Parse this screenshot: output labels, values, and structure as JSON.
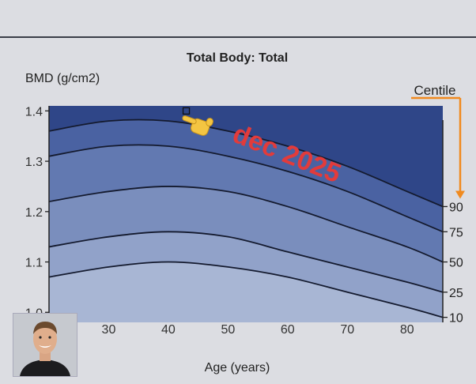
{
  "chart_data": {
    "type": "area",
    "title": "Total Body: Total",
    "ylabel": "BMD (g/cm2)",
    "xlabel": "Age (years)",
    "centile_label": "Centile",
    "annotation": "dec 2025",
    "xlim": [
      20,
      86
    ],
    "ylim": [
      0.98,
      1.41
    ],
    "x_ticks": [
      30,
      40,
      50,
      60,
      70,
      80
    ],
    "y_ticks": [
      1.0,
      1.1,
      1.2,
      1.3,
      1.4
    ],
    "y_tick_labels": [
      "1.0",
      "1.1",
      "1.2",
      "1.3",
      "1.4"
    ],
    "x": [
      20,
      30,
      40,
      50,
      60,
      70,
      80,
      86
    ],
    "series": [
      {
        "name": "10",
        "values": [
          1.07,
          1.09,
          1.1,
          1.09,
          1.07,
          1.04,
          1.01,
          0.99
        ]
      },
      {
        "name": "25",
        "values": [
          1.13,
          1.15,
          1.16,
          1.15,
          1.12,
          1.09,
          1.06,
          1.04
        ]
      },
      {
        "name": "50",
        "values": [
          1.22,
          1.24,
          1.25,
          1.24,
          1.21,
          1.17,
          1.13,
          1.1
        ]
      },
      {
        "name": "75",
        "values": [
          1.31,
          1.33,
          1.33,
          1.31,
          1.28,
          1.24,
          1.19,
          1.16
        ]
      },
      {
        "name": "90",
        "values": [
          1.36,
          1.38,
          1.38,
          1.36,
          1.33,
          1.29,
          1.24,
          1.21
        ]
      }
    ],
    "band_colors": [
      "#a8b6d4",
      "#91a2c9",
      "#7a8ebd",
      "#6279b1",
      "#4a62a2",
      "#2f4688"
    ],
    "measurement": {
      "x": 43,
      "y": 1.4
    },
    "annotation_color": "#e23b3b",
    "arrow_color": "#f08a1f"
  }
}
